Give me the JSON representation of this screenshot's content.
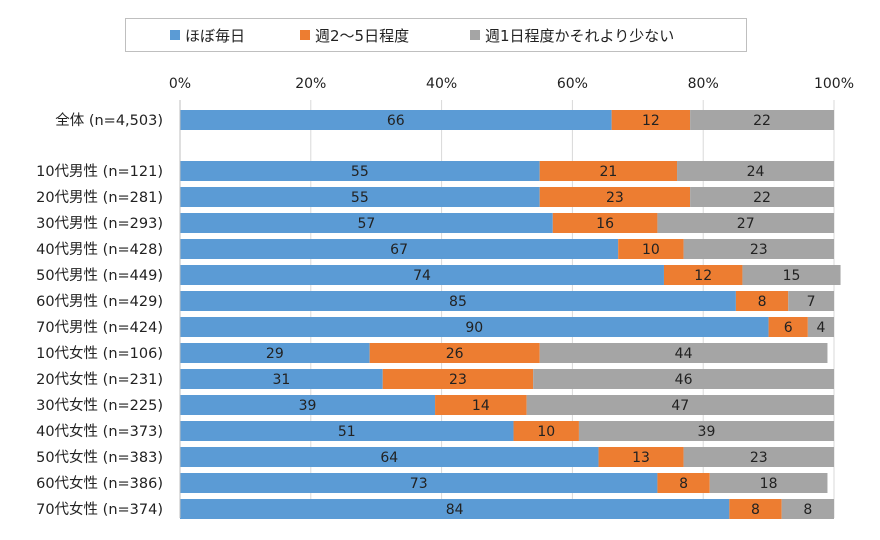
{
  "chart_data": {
    "type": "bar",
    "orientation": "horizontal",
    "stacked": true,
    "percent_stacked": true,
    "title": "",
    "xlabel": "",
    "ylabel": "",
    "xlim": [
      0,
      100
    ],
    "x_ticks": [
      "0%",
      "20%",
      "40%",
      "60%",
      "80%",
      "100%"
    ],
    "grid": true,
    "legend_position": "top",
    "categories": [
      "全体 (n=4,503)",
      "10代男性 (n=121)",
      "20代男性 (n=281)",
      "30代男性 (n=293)",
      "40代男性 (n=428)",
      "50代男性 (n=449)",
      "60代男性 (n=429)",
      "70代男性 (n=424)",
      "10代女性 (n=106)",
      "20代女性 (n=231)",
      "30代女性 (n=225)",
      "40代女性 (n=373)",
      "50代女性 (n=383)",
      "60代女性 (n=386)",
      "70代女性 (n=374)"
    ],
    "series": [
      {
        "name": "ほぼ毎日",
        "color": "#5b9bd5",
        "values": [
          66,
          55,
          55,
          57,
          67,
          74,
          85,
          90,
          29,
          31,
          39,
          51,
          64,
          73,
          84
        ]
      },
      {
        "name": "週2～5日程度",
        "color": "#ed7d31",
        "values": [
          12,
          21,
          23,
          16,
          10,
          12,
          8,
          6,
          26,
          23,
          14,
          10,
          13,
          8,
          8
        ]
      },
      {
        "name": "週1日程度かそれより少ない",
        "color": "#a5a5a5",
        "values": [
          22,
          24,
          22,
          27,
          23,
          15,
          7,
          4,
          44,
          46,
          47,
          39,
          23,
          18,
          8
        ]
      }
    ]
  }
}
